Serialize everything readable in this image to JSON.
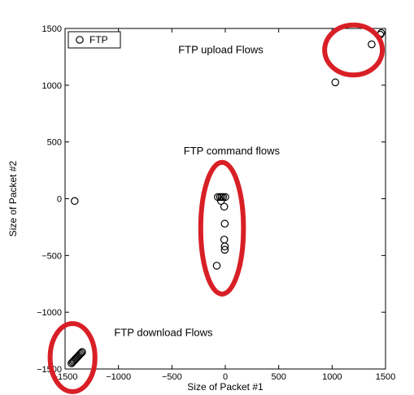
{
  "chart_data": {
    "type": "scatter",
    "xlabel": "Size of Packet #1",
    "ylabel": "Size of Packet #2",
    "xlim": [
      -1500,
      1500
    ],
    "ylim": [
      -1500,
      1500
    ],
    "xticks": [
      -1500,
      -1000,
      -500,
      0,
      500,
      1000,
      1500
    ],
    "yticks": [
      -1500,
      -1000,
      -500,
      0,
      500,
      1000,
      1500
    ],
    "xtick_labels": [
      "−1500",
      "−1000",
      "−500",
      "0",
      "500",
      "1000",
      "1500"
    ],
    "ytick_labels": [
      "−1500",
      "−1000",
      "−500",
      "0",
      "500",
      "1000",
      "1500"
    ],
    "grid": false,
    "legend": {
      "placement": "top-left",
      "entries": [
        "FTP"
      ]
    },
    "series": [
      {
        "name": "FTP",
        "marker": "circle-open",
        "points": [
          [
            1460,
            1460
          ],
          [
            1450,
            1445
          ],
          [
            1370,
            1360
          ],
          [
            1030,
            1025
          ],
          [
            -70,
            15
          ],
          [
            -50,
            15
          ],
          [
            -35,
            15
          ],
          [
            -20,
            15
          ],
          [
            0,
            15
          ],
          [
            -40,
            -20
          ],
          [
            -10,
            -70
          ],
          [
            -5,
            -220
          ],
          [
            -10,
            -360
          ],
          [
            -5,
            -420
          ],
          [
            -5,
            -450
          ],
          [
            -80,
            -590
          ],
          [
            -1410,
            -20
          ],
          [
            -1440,
            -1450
          ],
          [
            -1430,
            -1440
          ],
          [
            -1420,
            -1430
          ],
          [
            -1410,
            -1420
          ],
          [
            -1400,
            -1410
          ],
          [
            -1390,
            -1400
          ],
          [
            -1380,
            -1390
          ],
          [
            -1370,
            -1380
          ],
          [
            -1360,
            -1370
          ],
          [
            -1350,
            -1360
          ],
          [
            -1340,
            -1350
          ]
        ]
      }
    ],
    "annotations": [
      {
        "text": "FTP upload Flows",
        "x": -440,
        "y": 1280,
        "ellipse": {
          "cx": 1200,
          "cy": 1310,
          "rx": 270,
          "ry": 220,
          "color": "#d91f26"
        }
      },
      {
        "text": "FTP command flows",
        "x": -390,
        "y": 390,
        "ellipse": {
          "cx": -30,
          "cy": -260,
          "rx": 200,
          "ry": 580,
          "color": "#d91f26"
        }
      },
      {
        "text": "FTP download Flows",
        "x": -1040,
        "y": -1210,
        "ellipse": {
          "cx": -1430,
          "cy": -1400,
          "rx": 210,
          "ry": 300,
          "color": "#d91f26"
        }
      }
    ]
  }
}
